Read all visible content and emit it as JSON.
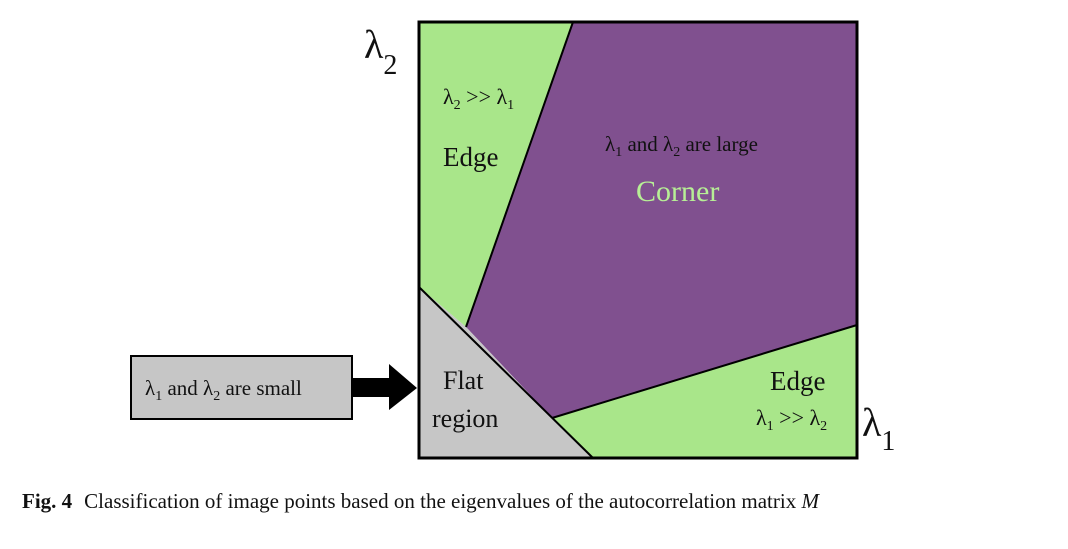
{
  "diagram": {
    "axis_y_symbol": "λ",
    "axis_y_sub": "2",
    "axis_x_symbol": "λ",
    "axis_x_sub": "1",
    "regions": {
      "edge_top": {
        "condition": {
          "a": "λ",
          "a_sub": "2",
          "op": " >> ",
          "b": "λ",
          "b_sub": "1"
        },
        "name": "Edge"
      },
      "corner": {
        "condition": {
          "a": "λ",
          "a_sub": "1",
          "mid": " and ",
          "b": "λ",
          "b_sub": "2",
          "tail": " are large"
        },
        "name": "Corner"
      },
      "flat": {
        "name_line1": "Flat",
        "name_line2": "region"
      },
      "edge_bottom": {
        "name": "Edge",
        "condition": {
          "a": "λ",
          "a_sub": "1",
          "op": " >> ",
          "b": "λ",
          "b_sub": "2"
        }
      }
    },
    "callout": {
      "a": "λ",
      "a_sub": "1",
      "mid": " and ",
      "b": "λ",
      "b_sub": "2",
      "tail": " are small"
    },
    "colors": {
      "edge": "#a9e68a",
      "corner": "#80508f",
      "flat": "#c6c6c6",
      "corner_text": "#b7ef96",
      "border": "#000000"
    }
  },
  "caption": {
    "label": "Fig. 4",
    "text": "Classification of image points based on the eigenvalues of the autocorrelation matrix ",
    "symbol": "M"
  }
}
